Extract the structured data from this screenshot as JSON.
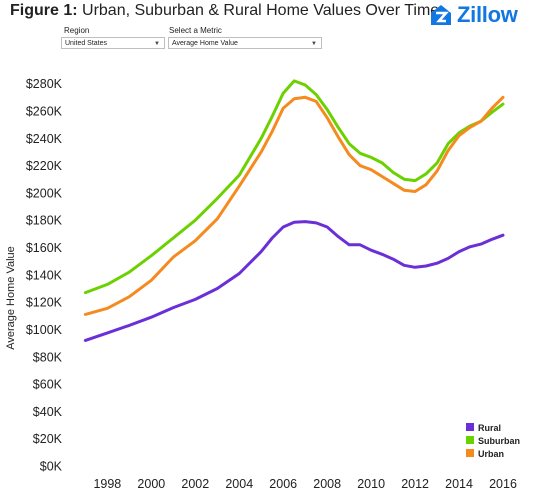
{
  "header": {
    "title_bold": "Figure 1:",
    "title_rest": " Urban, Suburban & Rural Home Values Over Time",
    "logo_text": "Zillow",
    "logo_color": "#1277e1"
  },
  "controls": {
    "region_label": "Region",
    "region_value": "United States",
    "metric_label": "Select a Metric",
    "metric_value": "Average Home Value"
  },
  "chart_data": {
    "type": "line",
    "title": "",
    "xlabel": "",
    "ylabel": "Average Home Value",
    "xlim": [
      1996.3,
      2017.0
    ],
    "ylim": [
      0,
      300000
    ],
    "x_ticks": [
      1998,
      2000,
      2002,
      2004,
      2006,
      2008,
      2010,
      2012,
      2014,
      2016
    ],
    "y_ticks": [
      0,
      20000,
      40000,
      60000,
      80000,
      100000,
      120000,
      140000,
      160000,
      180000,
      200000,
      220000,
      240000,
      260000,
      280000
    ],
    "y_tick_labels": [
      "$0K",
      "$20K",
      "$40K",
      "$60K",
      "$80K",
      "$100K",
      "$120K",
      "$140K",
      "$160K",
      "$180K",
      "$200K",
      "$220K",
      "$240K",
      "$260K",
      "$280K"
    ],
    "grid": false,
    "legend_position": "bottom-right",
    "series": [
      {
        "name": "Rural",
        "color": "#6a2fd6",
        "x": [
          1997.0,
          1998.0,
          1999.0,
          2000.0,
          2001.0,
          2002.0,
          2003.0,
          2004.0,
          2005.0,
          2005.5,
          2006.0,
          2006.5,
          2007.0,
          2007.5,
          2008.0,
          2008.5,
          2009.0,
          2009.5,
          2010.0,
          2010.5,
          2011.0,
          2011.5,
          2012.0,
          2012.5,
          2013.0,
          2013.5,
          2014.0,
          2014.5,
          2015.0,
          2015.5,
          2016.0
        ],
        "values": [
          92000,
          97500,
          103000,
          109000,
          116000,
          122000,
          130000,
          141000,
          157000,
          167000,
          175000,
          178500,
          179000,
          178000,
          175000,
          168000,
          162000,
          162000,
          158000,
          155000,
          151500,
          147000,
          145500,
          146500,
          148500,
          152000,
          157000,
          160500,
          162500,
          166000,
          169000
        ]
      },
      {
        "name": "Suburban",
        "color": "#6cd100",
        "x": [
          1997.0,
          1998.0,
          1999.0,
          2000.0,
          2001.0,
          2002.0,
          2003.0,
          2004.0,
          2005.0,
          2005.5,
          2006.0,
          2006.5,
          2007.0,
          2007.5,
          2008.0,
          2008.5,
          2009.0,
          2009.5,
          2010.0,
          2010.5,
          2011.0,
          2011.5,
          2012.0,
          2012.5,
          2013.0,
          2013.5,
          2014.0,
          2014.5,
          2015.0,
          2015.5,
          2016.0
        ],
        "values": [
          127000,
          133000,
          142000,
          154000,
          167000,
          180000,
          196000,
          213000,
          240000,
          256000,
          273000,
          282000,
          279000,
          272000,
          261000,
          248000,
          236000,
          229000,
          226000,
          222000,
          215000,
          210000,
          209000,
          214000,
          222000,
          236000,
          244000,
          249000,
          252500,
          259000,
          265000
        ]
      },
      {
        "name": "Urban",
        "color": "#f58a1f",
        "x": [
          1997.0,
          1998.0,
          1999.0,
          2000.0,
          2001.0,
          2002.0,
          2003.0,
          2004.0,
          2005.0,
          2005.5,
          2006.0,
          2006.5,
          2007.0,
          2007.5,
          2008.0,
          2008.5,
          2009.0,
          2009.5,
          2010.0,
          2010.5,
          2011.0,
          2011.5,
          2012.0,
          2012.5,
          2013.0,
          2013.5,
          2014.0,
          2014.5,
          2015.0,
          2015.5,
          2016.0
        ],
        "values": [
          111000,
          115500,
          124000,
          136000,
          153000,
          165000,
          181000,
          205000,
          230000,
          245000,
          262000,
          269000,
          270000,
          267000,
          255000,
          241000,
          228000,
          220000,
          217000,
          212000,
          207000,
          202000,
          201000,
          206000,
          216000,
          231000,
          242000,
          248000,
          252500,
          262000,
          270000
        ]
      }
    ]
  }
}
